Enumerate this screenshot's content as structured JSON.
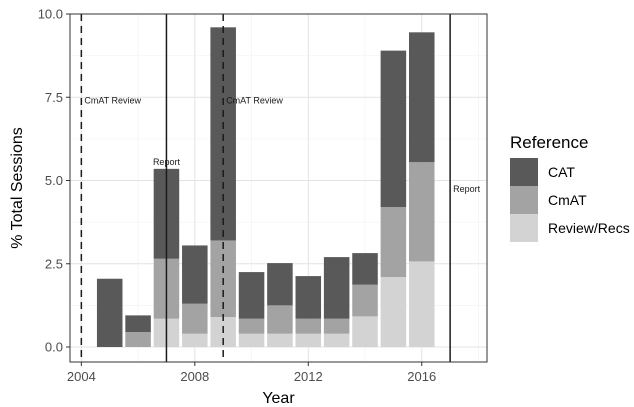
{
  "chart_data": {
    "type": "bar",
    "stacked": true,
    "x": [
      2005,
      2006,
      2007,
      2008,
      2009,
      2010,
      2011,
      2012,
      2013,
      2014,
      2015,
      2016
    ],
    "series": [
      {
        "name": "Review/Recs",
        "color": "#d3d3d3",
        "values": [
          0.0,
          0.0,
          0.85,
          0.4,
          0.9,
          0.4,
          0.4,
          0.4,
          0.4,
          0.92,
          2.1,
          2.57
        ]
      },
      {
        "name": "CmAT",
        "color": "#a3a3a3",
        "values": [
          0.0,
          0.45,
          1.8,
          0.9,
          2.3,
          0.45,
          0.85,
          0.45,
          0.45,
          0.95,
          2.1,
          2.98
        ]
      },
      {
        "name": "CAT",
        "color": "#595959",
        "values": [
          2.05,
          0.5,
          2.7,
          1.75,
          6.4,
          1.4,
          1.27,
          1.28,
          1.85,
          0.95,
          4.7,
          3.9
        ]
      }
    ],
    "xlabel": "Year",
    "ylabel": "% Total Sessions",
    "xlim": [
      2003.6,
      2018.3
    ],
    "ylim": [
      -0.45,
      10.0
    ],
    "xticks": [
      "2004",
      "2008",
      "2012",
      "2016"
    ],
    "yticks": [
      "0.0",
      "2.5",
      "5.0",
      "7.5",
      "10.0"
    ],
    "grid": true,
    "legend_title": "Reference",
    "legend_position": "right",
    "vlines": [
      {
        "x": 2004,
        "style": "dashed",
        "label": "CmAT Review"
      },
      {
        "x": 2007,
        "style": "solid",
        "label": "Report"
      },
      {
        "x": 2009,
        "style": "dashed",
        "label": "CmAT Review"
      },
      {
        "x": 2017,
        "style": "solid",
        "label": "Report"
      }
    ],
    "annotations": [
      {
        "text": "CmAT Review",
        "x": 2004,
        "y": 7.4
      },
      {
        "text": "Report",
        "x": 2007,
        "y": 5.55
      },
      {
        "text": "CmAT Review",
        "x": 2009,
        "y": 7.4
      },
      {
        "text": "Report",
        "x": 2017,
        "y": 4.75
      }
    ]
  }
}
